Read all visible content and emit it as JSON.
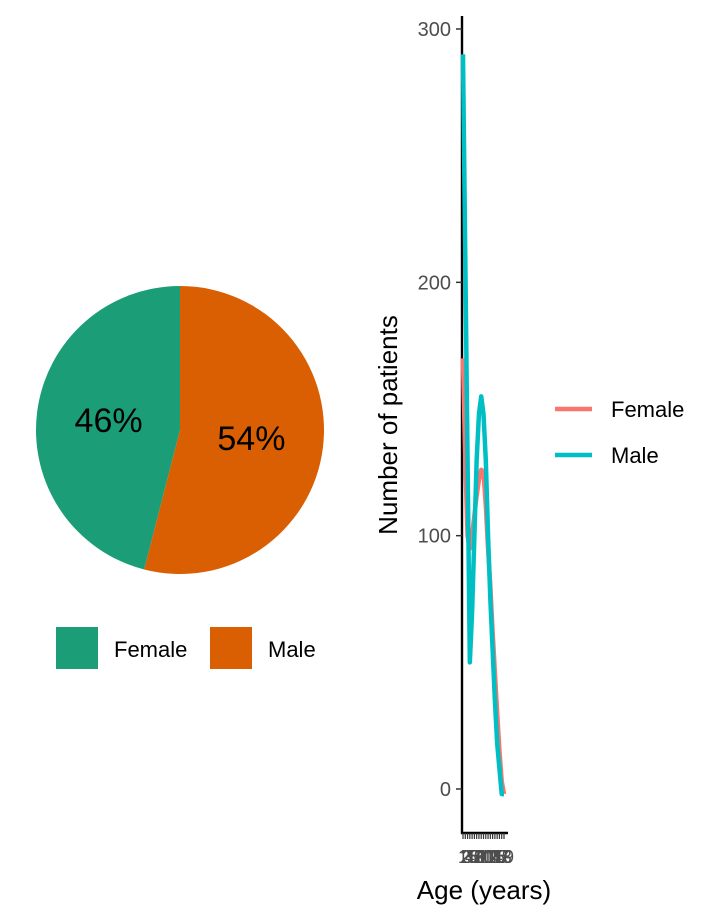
{
  "chart_data": [
    {
      "type": "pie",
      "title": "",
      "slices": [
        {
          "label": "Female",
          "value": 46,
          "pct_label": "46%",
          "color": "#1B9E77"
        },
        {
          "label": "Male",
          "value": 54,
          "pct_label": "54%",
          "color": "#D95F02"
        }
      ],
      "legend_position": "bottom",
      "legend": [
        "Female",
        "Male"
      ]
    },
    {
      "type": "line",
      "title": "",
      "xlabel": "Age (years)",
      "ylabel": "Number of patients",
      "ylim": [
        -15,
        305
      ],
      "yticks": [
        0,
        100,
        200,
        300
      ],
      "xticks": [
        "1",
        "2",
        "3",
        "4",
        "5",
        "6",
        "7",
        "8",
        "9",
        "10",
        "11",
        "12",
        "13",
        "14",
        "15",
        "16",
        "17",
        "18",
        "19"
      ],
      "x": [
        1,
        2,
        3,
        4,
        5,
        6,
        7,
        8,
        9,
        10,
        11,
        12,
        13,
        14,
        15,
        16,
        17,
        18,
        19
      ],
      "series": [
        {
          "name": "Female",
          "color": "#F8766D",
          "values": [
            170,
            130,
            100,
            95,
            100,
            108,
            116,
            122,
            126,
            125,
            112,
            95,
            80,
            62,
            46,
            30,
            15,
            3,
            -2
          ]
        },
        {
          "name": "Male",
          "color": "#00BFC4",
          "values": [
            290,
            210,
            130,
            50,
            70,
            100,
            130,
            148,
            155,
            148,
            130,
            100,
            75,
            55,
            35,
            18,
            8,
            -2,
            -2
          ]
        }
      ],
      "legend_position": "right",
      "grid": false
    }
  ]
}
